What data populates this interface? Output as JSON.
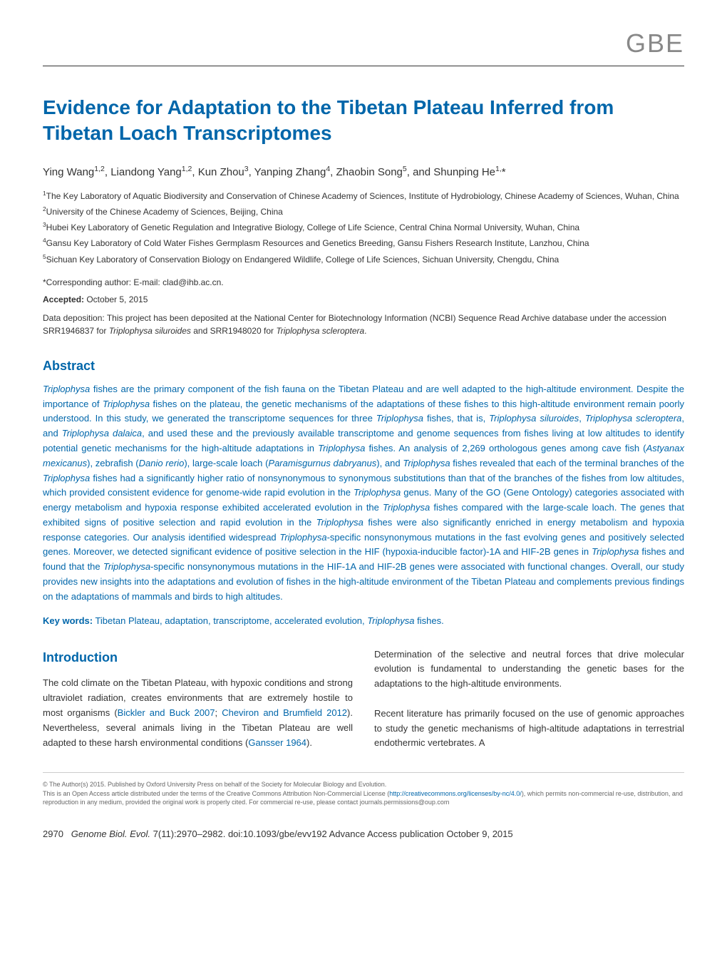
{
  "journal": {
    "abbreviation": "GBE"
  },
  "article": {
    "title": "Evidence for Adaptation to the Tibetan Plateau Inferred from Tibetan Loach Transcriptomes",
    "authors_html": "Ying Wang<sup>1,2</sup>, Liandong Yang<sup>1,2</sup>, Kun Zhou<sup>3</sup>, Yanping Zhang<sup>4</sup>, Zhaobin Song<sup>5</sup>, and Shunping He<sup>1,</sup>*",
    "affiliations": [
      "<sup>1</sup>The Key Laboratory of Aquatic Biodiversity and Conservation of Chinese Academy of Sciences, Institute of Hydrobiology, Chinese Academy of Sciences, Wuhan, China",
      "<sup>2</sup>University of the Chinese Academy of Sciences, Beijing, China",
      "<sup>3</sup>Hubei Key Laboratory of Genetic Regulation and Integrative Biology, College of Life Science, Central China Normal University, Wuhan, China",
      "<sup>4</sup>Gansu Key Laboratory of Cold Water Fishes Germplasm Resources and Genetics Breeding, Gansu Fishers Research Institute, Lanzhou, China",
      "<sup>5</sup>Sichuan Key Laboratory of Conservation Biology on Endangered Wildlife, College of Life Sciences, Sichuan University, Chengdu, China"
    ],
    "corresponding": "*Corresponding author: E-mail: clad@ihb.ac.cn.",
    "accepted_label": "Accepted:",
    "accepted_date": " October 5, 2015",
    "data_deposition": "Data deposition: This project has been deposited at the National Center for Biotechnology Information (NCBI) Sequence Read Archive database under the accession SRR1946837 for <span class=\"italic\">Triplophysa siluroides</span> and SRR1948020 for <span class=\"italic\">Triplophysa scleroptera</span>."
  },
  "abstract": {
    "heading": "Abstract",
    "text": "<span class=\"italic\">Triplophysa</span> fishes are the primary component of the fish fauna on the Tibetan Plateau and are well adapted to the high-altitude environment. Despite the importance of <span class=\"italic\">Triplophysa</span> fishes on the plateau, the genetic mechanisms of the adaptations of these fishes to this high-altitude environment remain poorly understood. In this study, we generated the transcriptome sequences for three <span class=\"italic\">Triplophysa</span> fishes, that is, <span class=\"italic\">Triplophysa siluroides</span>, <span class=\"italic\">Triplophysa scleroptera</span>, and <span class=\"italic\">Triplophysa dalaica</span>, and used these and the previously available transcriptome and genome sequences from fishes living at low altitudes to identify potential genetic mechanisms for the high-altitude adaptations in <span class=\"italic\">Triplophysa</span> fishes. An analysis of 2,269 orthologous genes among cave fish (<span class=\"italic\">Astyanax mexicanus</span>), zebrafish (<span class=\"italic\">Danio rerio</span>), large-scale loach (<span class=\"italic\">Paramisgurnus dabryanus</span>), and <span class=\"italic\">Triplophysa</span> fishes revealed that each of the terminal branches of the <span class=\"italic\">Triplophysa</span> fishes had a significantly higher ratio of nonsynonymous to synonymous substitutions than that of the branches of the fishes from low altitudes, which provided consistent evidence for genome-wide rapid evolution in the <span class=\"italic\">Triplophysa</span> genus. Many of the GO (Gene Ontology) categories associated with energy metabolism and hypoxia response exhibited accelerated evolution in the <span class=\"italic\">Triplophysa</span> fishes compared with the large-scale loach. The genes that exhibited signs of positive selection and rapid evolution in the <span class=\"italic\">Triplophysa</span> fishes were also significantly enriched in energy metabolism and hypoxia response categories. Our analysis identified widespread <span class=\"italic\">Triplophysa</span>-specific nonsynonymous mutations in the fast evolving genes and positively selected genes. Moreover, we detected significant evidence of positive selection in the HIF (hypoxia-inducible factor)-1A and HIF-2B genes in <span class=\"italic\">Triplophysa</span> fishes and found that the <span class=\"italic\">Triplophysa</span>-specific nonsynonymous mutations in the HIF-1A and HIF-2B genes were associated with functional changes. Overall, our study provides new insights into the adaptations and evolution of fishes in the high-altitude environment of the Tibetan Plateau and complements previous findings on the adaptations of mammals and birds to high altitudes.",
    "keywords_label": "Key words:",
    "keywords": " Tibetan Plateau, adaptation, transcriptome, accelerated evolution, <span class=\"italic\">Triplophysa</span> fishes."
  },
  "introduction": {
    "heading": "Introduction",
    "col1": "The cold climate on the Tibetan Plateau, with hypoxic conditions and strong ultraviolet radiation, creates environments that are extremely hostile to most organisms (<span class=\"link\">Bickler and Buck 2007</span>; <span class=\"link\">Cheviron and Brumfield 2012</span>). Nevertheless, several animals living in the Tibetan Plateau are well adapted to these harsh environmental conditions (<span class=\"link\">Gansser 1964</span>).",
    "col2": "Determination of the selective and neutral forces that drive molecular evolution is fundamental to understanding the genetic bases for the adaptations to the high-altitude environments.<br><br>Recent literature has primarily focused on the use of genomic approaches to study the genetic mechanisms of high-altitude adaptations in terrestrial endothermic vertebrates. A"
  },
  "copyright": {
    "text": "© The Author(s) 2015. Published by Oxford University Press on behalf of the Society for Molecular Biology and Evolution.<br>This is an Open Access article distributed under the terms of the Creative Commons Attribution Non-Commercial License (<span class=\"link\">http://creativecommons.org/licenses/by-nc/4.0/</span>), which permits non-commercial re-use, distribution, and reproduction in any medium, provided the original work is properly cited. For commercial re-use, please contact journals.permissions@oup.com"
  },
  "footer": {
    "page": "2970",
    "citation": "Genome Biol. Evol.",
    "details": " 7(11):2970–2982.  doi:10.1093/gbe/evv192  Advance Access publication October 9, 2015"
  },
  "styling": {
    "title_color": "#0066aa",
    "abstract_color": "#0066aa",
    "body_color": "#333333",
    "journal_header_color": "#888888",
    "background_color": "#ffffff",
    "link_color": "#0066aa",
    "title_fontsize": 28,
    "heading_fontsize": 18,
    "body_fontsize": 13,
    "affiliation_fontsize": 12,
    "copyright_fontsize": 9
  }
}
